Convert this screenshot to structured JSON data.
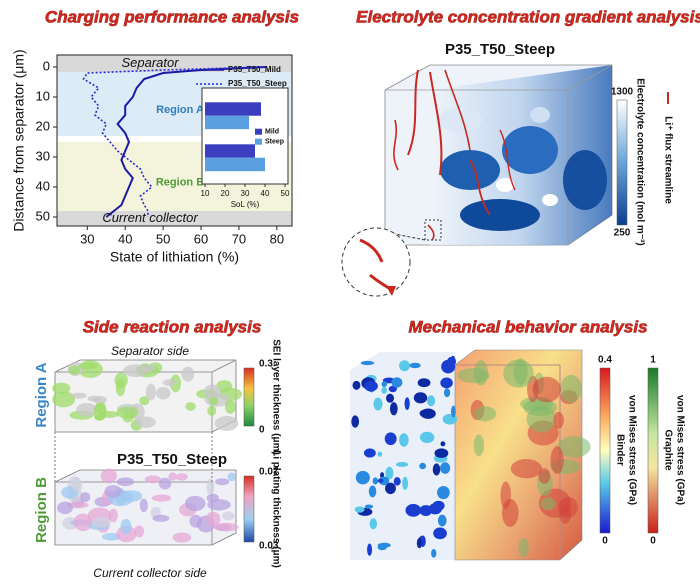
{
  "chart_data": [
    {
      "type": "line",
      "title": "Charging performance analysis",
      "orientation": "horizontal",
      "x_label": "State of lithiation (%)",
      "y_label": "Distance from separator (μm)",
      "y": [
        0,
        1,
        2,
        4,
        7,
        10,
        13,
        16,
        19,
        22,
        25,
        28,
        31,
        34,
        37,
        40,
        43,
        46,
        48,
        50
      ],
      "series": [
        {
          "name": "P35_T50_Mild",
          "color": "#1a1aa6",
          "dash": "solid",
          "values": [
            77,
            60,
            50,
            45,
            43,
            42,
            40,
            40,
            38,
            40,
            41,
            40,
            39,
            40,
            42,
            41,
            40,
            39,
            37,
            35
          ]
        },
        {
          "name": "P35_T50_Steep",
          "color": "#2a2ad0",
          "dash": "dotted",
          "values": [
            77,
            50,
            30,
            29,
            33,
            31,
            33,
            32,
            35,
            34,
            36,
            38,
            41,
            44,
            45,
            47,
            44,
            45,
            46,
            46
          ]
        }
      ],
      "xlim": [
        22,
        84
      ],
      "xticks": [
        30,
        40,
        50,
        60,
        70,
        80
      ],
      "ylim": [
        -4,
        53
      ],
      "yticks": [
        0,
        10,
        20,
        30,
        40,
        50
      ],
      "y_inverted": true,
      "regions": [
        {
          "label": "Separator",
          "range": [
            -4,
            1.7
          ],
          "color": "#d9d9d9",
          "label_color": "#111"
        },
        {
          "label": "Region A",
          "range": [
            1.7,
            23
          ],
          "color": "#dcebf5",
          "label_color": "#2f7fc0"
        },
        {
          "label": "Region B",
          "range": [
            25,
            48
          ],
          "color": "#f4f4dc",
          "label_color": "#4f9a35"
        },
        {
          "label": "Current collector",
          "range": [
            48,
            53
          ],
          "color": "#d9d9d9",
          "label_color": "#111"
        }
      ]
    },
    {
      "type": "bar",
      "orientation": "horizontal",
      "x_label": "SoL (%)",
      "categories": [
        null,
        null
      ],
      "series": [
        {
          "name": "Mild",
          "color": "#3b3fbf",
          "values": [
            38,
            35
          ]
        },
        {
          "name": "Steep",
          "color": "#5aa0e0",
          "values": [
            32,
            40
          ]
        }
      ],
      "xlim": [
        10,
        50
      ],
      "xticks": [
        10,
        20,
        30,
        40,
        50
      ]
    }
  ],
  "panels": {
    "electrolyte": {
      "title": "Electrolyte concentration gradient analysis",
      "sample": "P35_T50_Steep",
      "colorbar": {
        "max": 1300,
        "min": 250,
        "label": "Electrolyte concentration (mol m⁻³)"
      },
      "streamline_label": "Li⁺ flux streamline"
    },
    "side_reaction": {
      "title": "Side reaction analysis",
      "top_label": "Separator side",
      "bottom_label": "Current collector side",
      "region_a": "Region A",
      "region_b": "Region B",
      "sample": "P35_T50_Steep",
      "sei_colorbar": {
        "max": 0.3,
        "min": 0,
        "label": "SEI layer thickness (μm)"
      },
      "plating_colorbar": {
        "max": 0.07,
        "min": 0.03,
        "label": "Li plating thickness (μm)"
      }
    },
    "mechanical": {
      "title": "Mechanical behavior analysis",
      "binder_colorbar": {
        "max": 0.4,
        "min": 0,
        "label_1": "Binder",
        "label_2": "von Mises stress (GPa)"
      },
      "graphite_colorbar": {
        "max": 1,
        "min": 0,
        "label_1": "Graphite",
        "label_2": "von Mises stress (GPa)"
      }
    }
  }
}
